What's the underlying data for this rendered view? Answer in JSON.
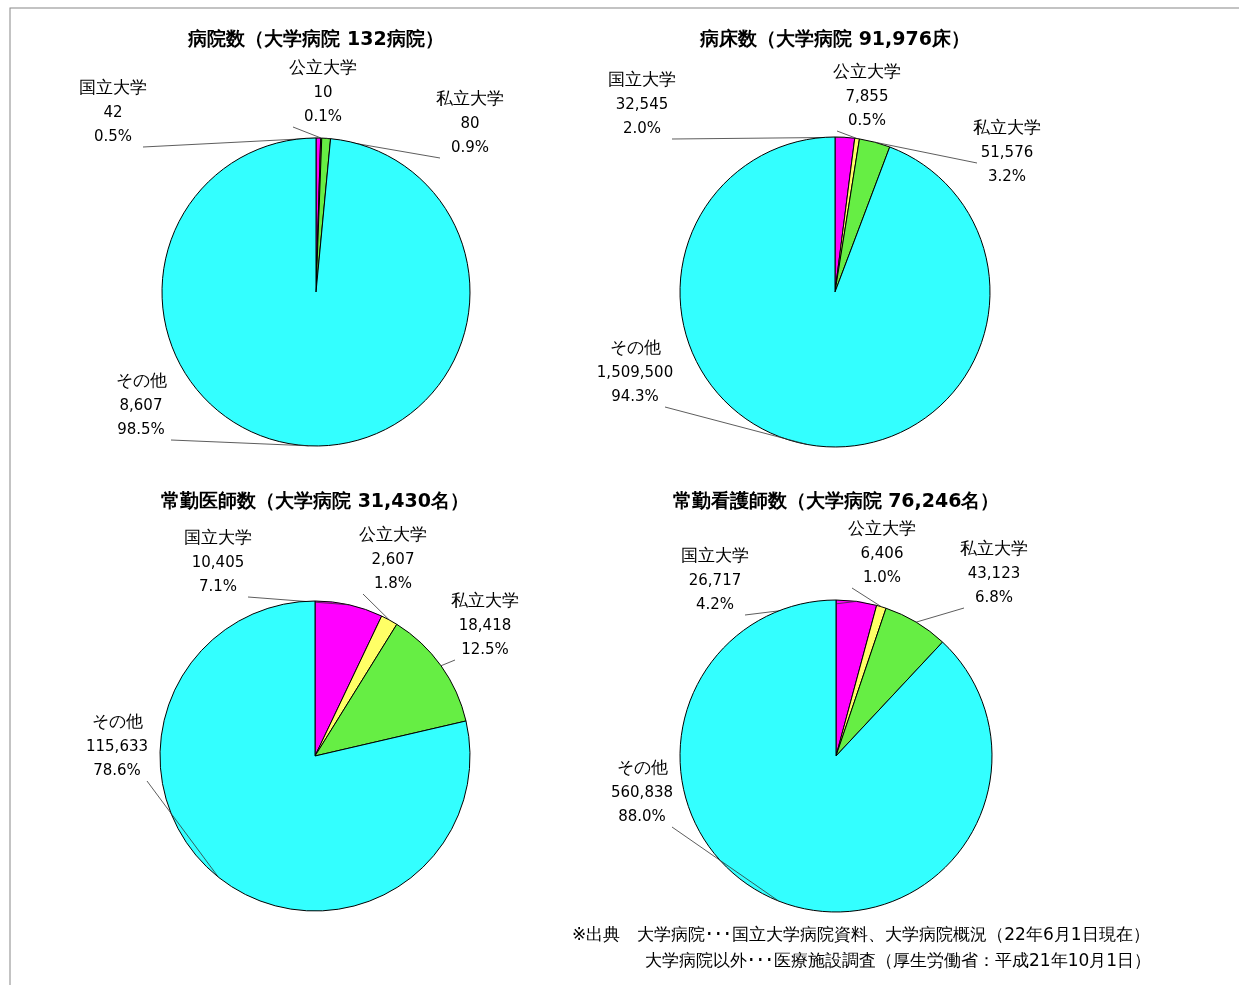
{
  "chart_data": [
    {
      "type": "pie",
      "title": "病院数（大学病院 132病院）",
      "categories": [
        "国立大学",
        "公立大学",
        "私立大学",
        "その他"
      ],
      "values": [
        42,
        10,
        80,
        8607
      ],
      "value_labels": [
        "42\n0.5%",
        "10\n0.1%",
        "80\n0.9%",
        "8,607\n98.5%"
      ],
      "colors": [
        "#ff00ff",
        "#ffff66",
        "#66ee44",
        "#33ffff"
      ]
    },
    {
      "type": "pie",
      "title": "病床数（大学病院 91,976床）",
      "categories": [
        "国立大学",
        "公立大学",
        "私立大学",
        "その他"
      ],
      "values": [
        32545,
        7855,
        51576,
        1509500
      ],
      "value_labels": [
        "32,545\n2.0%",
        "7,855\n0.5%",
        "51,576\n3.2%",
        "1,509,500\n94.3%"
      ],
      "colors": [
        "#ff00ff",
        "#ffff66",
        "#66ee44",
        "#33ffff"
      ]
    },
    {
      "type": "pie",
      "title": "常勤医師数（大学病院 31,430名）",
      "categories": [
        "国立大学",
        "公立大学",
        "私立大学",
        "その他"
      ],
      "values": [
        10405,
        2607,
        18418,
        115633
      ],
      "value_labels": [
        "10,405\n7.1%",
        "2,607\n1.8%",
        "18,418\n12.5%",
        "115,633\n78.6%"
      ],
      "colors": [
        "#ff00ff",
        "#ffff66",
        "#66ee44",
        "#33ffff"
      ]
    },
    {
      "type": "pie",
      "title": "常勤看護師数（大学病院 76,246名）",
      "categories": [
        "国立大学",
        "公立大学",
        "私立大学",
        "その他"
      ],
      "values": [
        26717,
        6406,
        43123,
        560838
      ],
      "value_labels": [
        "26,717\n4.2%",
        "6,406\n1.0%",
        "43,123\n6.8%",
        "560,838\n88.0%"
      ],
      "colors": [
        "#ff00ff",
        "#ffff66",
        "#66ee44",
        "#33ffff"
      ],
      "annotations": [
        "※出典　大学病院･･･国立大学病院資料、大学病院概況（22年6月1日現在）",
        "大学病院以外･･･医療施設調査（厚生労働省：平成21年10月1日）"
      ]
    }
  ]
}
